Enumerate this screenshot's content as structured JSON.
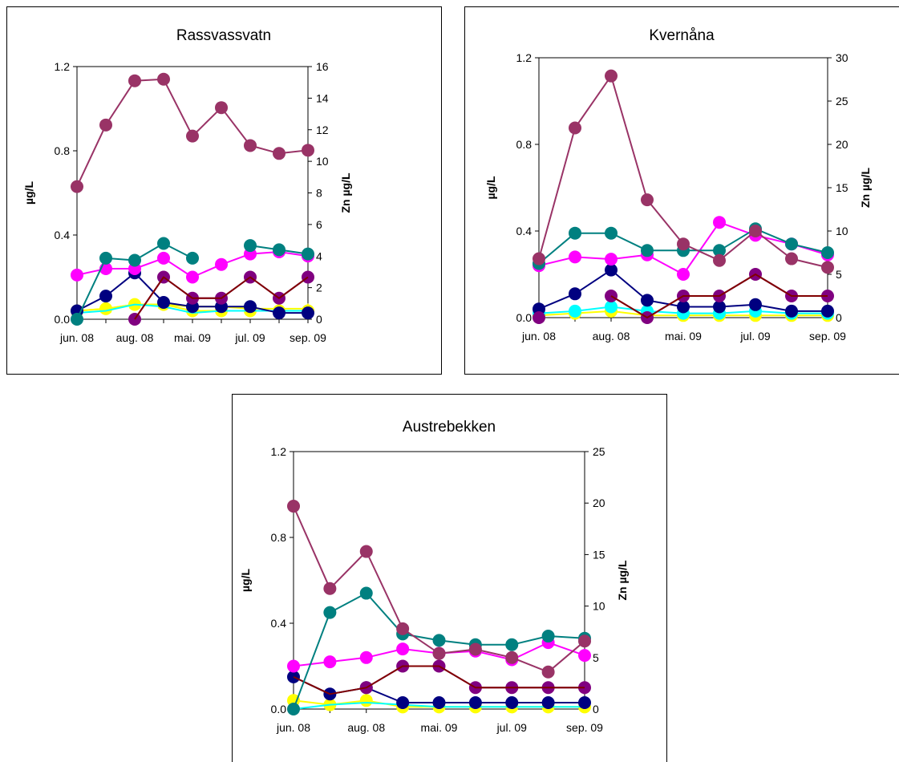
{
  "chart_data": [
    {
      "type": "line",
      "title": "Rassvassvatn",
      "ylabel": "µg/L",
      "y2label": "Zn µg/L",
      "ylim": [
        0,
        1.2
      ],
      "y2lim": [
        0,
        16
      ],
      "yticks": [
        "0.0",
        "0.4",
        "0.8",
        "1.2"
      ],
      "y2ticks": [
        "0",
        "2",
        "4",
        "6",
        "8",
        "10",
        "12",
        "14",
        "16"
      ],
      "xticks": [
        "jun. 08",
        "aug. 08",
        "mai. 09",
        "jul. 09",
        "sep. 09"
      ],
      "grid": false,
      "series": [
        {
          "axis": "y2",
          "color": "#993366",
          "marker": "circle",
          "values": [
            8.4,
            12.3,
            15.1,
            15.2,
            11.6,
            13.4,
            11.0,
            10.5,
            10.7
          ]
        },
        {
          "axis": "y",
          "color": "#008080",
          "marker": "circle",
          "values": [
            0.0,
            0.29,
            0.28,
            0.36,
            0.29,
            null,
            0.35,
            0.33,
            0.31
          ]
        },
        {
          "axis": "y",
          "color": "#ff00ff",
          "marker": "circle",
          "values": [
            0.21,
            0.24,
            0.24,
            0.29,
            0.2,
            0.26,
            0.31,
            0.32,
            0.3
          ]
        },
        {
          "axis": "y",
          "color": "#800000",
          "marker": "none",
          "values": [
            0.03,
            null,
            0.0,
            0.2,
            0.1,
            0.1,
            0.2,
            0.1,
            0.2
          ]
        },
        {
          "axis": "y",
          "color": "#800080",
          "marker": "circle",
          "values": [
            null,
            null,
            0.0,
            0.2,
            0.1,
            0.1,
            0.2,
            0.1,
            0.2
          ]
        },
        {
          "axis": "y",
          "color": "#000080",
          "marker": "circle",
          "values": [
            0.04,
            0.11,
            0.22,
            0.08,
            0.06,
            0.06,
            0.06,
            0.03,
            0.03
          ]
        },
        {
          "axis": "y",
          "color": "#00ffff",
          "marker": "none",
          "values": [
            0.03,
            0.04,
            0.07,
            0.06,
            0.03,
            0.04,
            0.04,
            0.04,
            0.04
          ]
        },
        {
          "axis": "y",
          "color": "#ffff00",
          "marker": "triangle",
          "values": [
            0.04,
            0.05,
            0.07,
            0.07,
            0.06,
            0.06,
            0.05,
            0.05,
            0.05
          ]
        },
        {
          "axis": "y",
          "color": "#ffff00",
          "marker": "circle",
          "values": [
            0.04,
            0.05,
            0.07,
            0.07,
            0.04,
            0.04,
            0.04,
            0.04,
            0.04
          ]
        }
      ]
    },
    {
      "type": "line",
      "title": "Kvernåna",
      "ylabel": "µg/L",
      "y2label": "Zn µg/L",
      "ylim": [
        0,
        1.2
      ],
      "y2lim": [
        0,
        30
      ],
      "yticks": [
        "0.0",
        "0.4",
        "0.8",
        "1.2"
      ],
      "y2ticks": [
        "0",
        "5",
        "10",
        "15",
        "20",
        "25",
        "30"
      ],
      "xticks": [
        "jun. 08",
        "aug. 08",
        "mai. 09",
        "jul. 09",
        "sep. 09"
      ],
      "grid": false,
      "series": [
        {
          "axis": "y2",
          "color": "#993366",
          "marker": "circle",
          "values": [
            6.8,
            21.9,
            27.9,
            13.6,
            8.5,
            6.6,
            10.0,
            6.8,
            5.8
          ]
        },
        {
          "axis": "y",
          "color": "#008080",
          "marker": "circle",
          "values": [
            0.25,
            0.39,
            0.39,
            0.31,
            0.31,
            0.31,
            0.41,
            0.34,
            0.3
          ]
        },
        {
          "axis": "y",
          "color": "#ff00ff",
          "marker": "circle",
          "values": [
            0.24,
            0.28,
            0.27,
            0.29,
            0.2,
            0.44,
            0.38,
            0.34,
            0.29
          ]
        },
        {
          "axis": "y",
          "color": "#800000",
          "marker": "none",
          "values": [
            0.0,
            null,
            0.1,
            0.0,
            0.1,
            0.1,
            0.2,
            0.1,
            0.1
          ]
        },
        {
          "axis": "y",
          "color": "#800080",
          "marker": "circle",
          "values": [
            0.0,
            null,
            0.1,
            0.0,
            0.1,
            0.1,
            0.2,
            0.1,
            0.1
          ]
        },
        {
          "axis": "y",
          "color": "#000080",
          "marker": "circle",
          "values": [
            0.04,
            0.11,
            0.22,
            0.08,
            0.05,
            0.05,
            0.06,
            0.03,
            0.03
          ]
        },
        {
          "axis": "y",
          "color": "#00ffff",
          "marker": "circle",
          "values": [
            0.02,
            0.03,
            0.05,
            0.03,
            0.02,
            0.02,
            0.03,
            0.02,
            0.02
          ]
        },
        {
          "axis": "y",
          "color": "#ffff00",
          "marker": "circle",
          "values": [
            0.01,
            0.02,
            0.03,
            0.01,
            0.01,
            0.01,
            0.01,
            0.01,
            0.01
          ]
        }
      ]
    },
    {
      "type": "line",
      "title": "Austrebekken",
      "ylabel": "µg/L",
      "y2label": "Zn µg/L",
      "ylim": [
        0,
        1.2
      ],
      "y2lim": [
        0,
        25
      ],
      "yticks": [
        "0.0",
        "0.4",
        "0.8",
        "1.2"
      ],
      "y2ticks": [
        "0",
        "5",
        "10",
        "15",
        "20",
        "25"
      ],
      "xticks": [
        "jun. 08",
        "aug. 08",
        "mai. 09",
        "jul. 09",
        "sep. 09"
      ],
      "grid": false,
      "series": [
        {
          "axis": "y2",
          "color": "#993366",
          "marker": "circle",
          "values": [
            19.7,
            11.7,
            15.3,
            7.8,
            5.4,
            5.8,
            5.0,
            3.6,
            6.6
          ]
        },
        {
          "axis": "y",
          "color": "#008080",
          "marker": "circle",
          "values": [
            0.0,
            0.45,
            0.54,
            0.35,
            0.32,
            0.3,
            0.3,
            0.34,
            0.33
          ]
        },
        {
          "axis": "y",
          "color": "#ff00ff",
          "marker": "circle",
          "values": [
            0.2,
            0.22,
            0.24,
            0.28,
            0.26,
            0.27,
            0.23,
            0.31,
            0.25
          ]
        },
        {
          "axis": "y",
          "color": "#800000",
          "marker": "none",
          "values": [
            0.15,
            0.07,
            0.1,
            0.2,
            0.2,
            0.1,
            0.1,
            0.1,
            0.1
          ]
        },
        {
          "axis": "y",
          "color": "#800080",
          "marker": "circle",
          "values": [
            null,
            null,
            0.1,
            0.2,
            0.2,
            0.1,
            0.1,
            0.1,
            0.1
          ]
        },
        {
          "axis": "y",
          "color": "#000080",
          "marker": "circle",
          "values": [
            0.15,
            0.07,
            0.1,
            0.03,
            0.03,
            0.03,
            0.03,
            0.03,
            0.03
          ]
        },
        {
          "axis": "y",
          "color": "#00ffff",
          "marker": "none",
          "values": [
            0.0,
            0.02,
            0.03,
            0.02,
            0.01,
            0.01,
            0.01,
            0.01,
            0.01
          ]
        },
        {
          "axis": "y",
          "color": "#ffff00",
          "marker": "circle",
          "values": [
            0.04,
            0.02,
            0.04,
            0.01,
            0.01,
            0.01,
            0.01,
            0.01,
            0.01
          ]
        }
      ]
    }
  ]
}
